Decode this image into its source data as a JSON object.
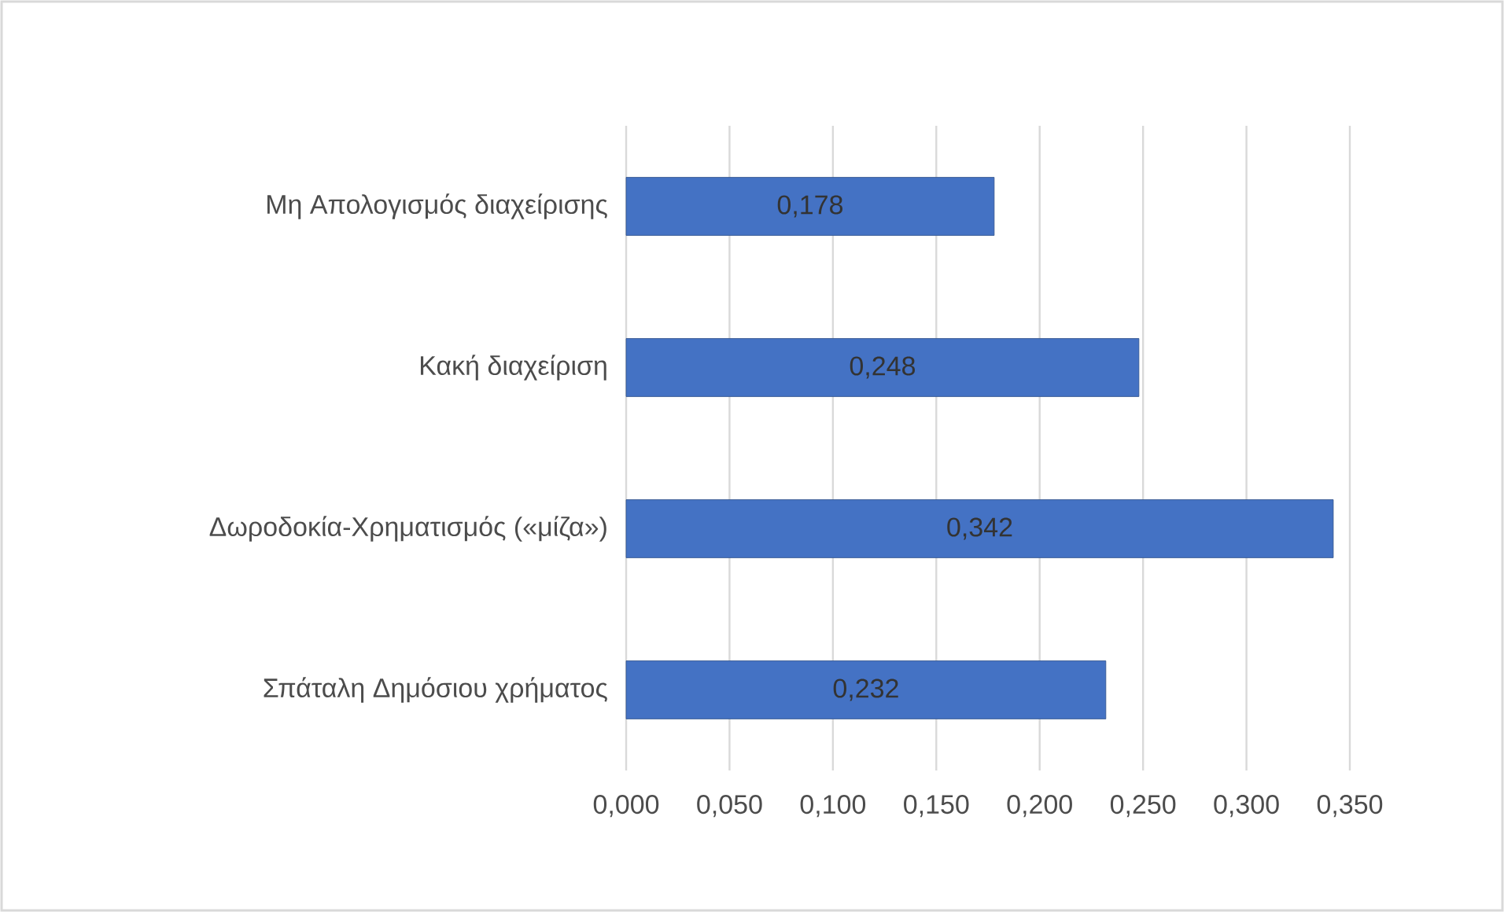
{
  "chart_data": {
    "type": "bar",
    "orientation": "horizontal",
    "categories": [
      "Μη Απολογισμός  διαχείρισης",
      "Κακή διαχείριση",
      "Δωροδοκία-Χρηματισμός («μίζα»)",
      "Σπάταλη Δημόσιου χρήματος"
    ],
    "values": [
      0.178,
      0.248,
      0.342,
      0.232
    ],
    "value_labels": [
      "0,178",
      "0,248",
      "0,342",
      "0,232"
    ],
    "color": "#4472c4",
    "xlim": [
      0,
      0.35
    ],
    "xticks": [
      {
        "value": 0,
        "label": "0,000"
      },
      {
        "value": 0.05,
        "label": "0,050"
      },
      {
        "value": 0.1,
        "label": "0,100"
      },
      {
        "value": 0.15,
        "label": "0,150"
      },
      {
        "value": 0.2,
        "label": "0,200"
      },
      {
        "value": 0.25,
        "label": "0,250"
      },
      {
        "value": 0.3,
        "label": "0,300"
      },
      {
        "value": 0.35,
        "label": "0,350"
      }
    ],
    "grid": "x"
  }
}
